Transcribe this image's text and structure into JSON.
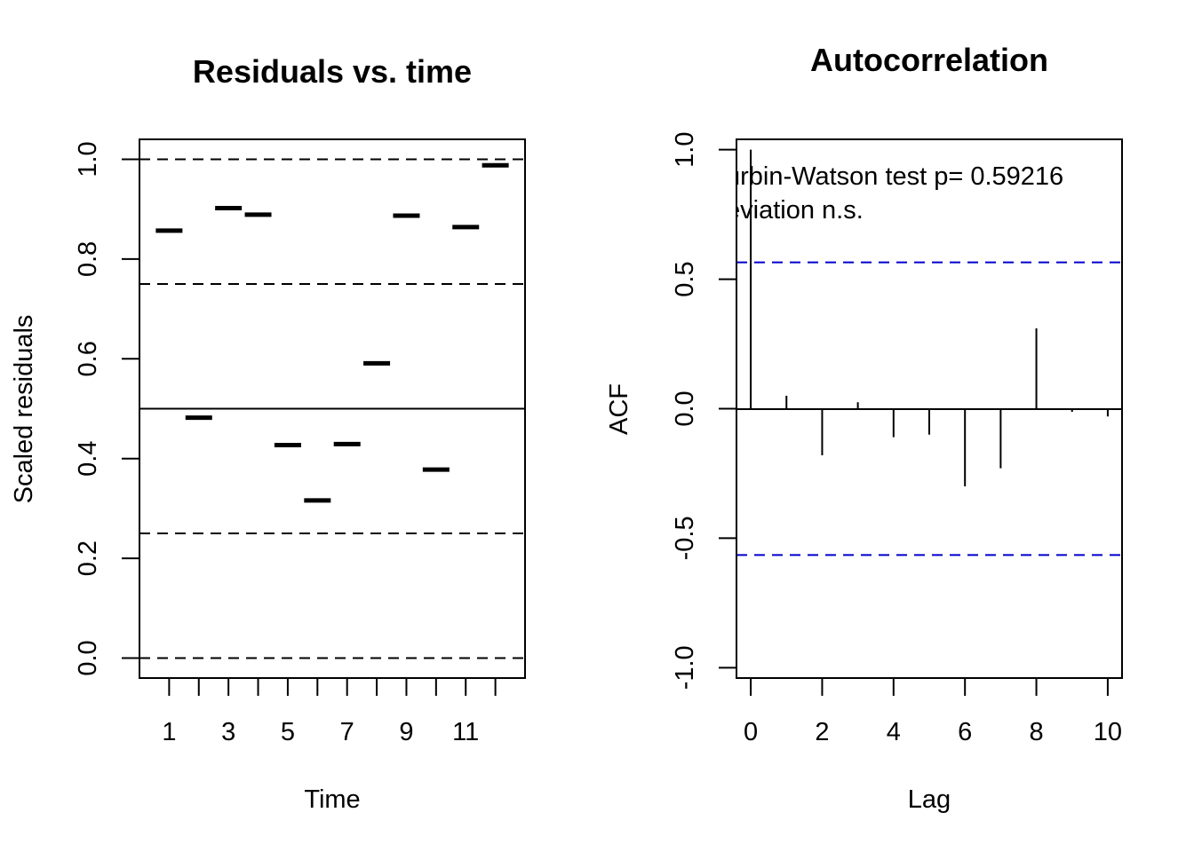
{
  "chart_data": [
    {
      "type": "scatter",
      "title": "Residuals vs. time",
      "xlabel": "Time",
      "ylabel": "Scaled residuals",
      "xlim": [
        0.0,
        13.0
      ],
      "ylim": [
        -0.04,
        1.04
      ],
      "x_ticks": [
        1,
        2,
        3,
        4,
        5,
        6,
        7,
        8,
        9,
        10,
        11,
        12
      ],
      "x_tick_labels": [
        "1",
        "3",
        "5",
        "7",
        "9",
        "11"
      ],
      "x_tick_label_values": [
        1,
        3,
        5,
        7,
        9,
        11
      ],
      "y_ticks": [
        0.0,
        0.2,
        0.4,
        0.6,
        0.8,
        1.0
      ],
      "y_tick_labels": [
        "0.0",
        "0.2",
        "0.4",
        "0.6",
        "0.8",
        "1.0"
      ],
      "reference_lines": [
        {
          "y": 0.0,
          "style": "dashed"
        },
        {
          "y": 0.25,
          "style": "dashed"
        },
        {
          "y": 0.5,
          "style": "solid"
        },
        {
          "y": 0.75,
          "style": "dashed"
        },
        {
          "y": 1.0,
          "style": "dashed"
        }
      ],
      "x": [
        1,
        2,
        3,
        4,
        5,
        6,
        7,
        8,
        9,
        10,
        11,
        12
      ],
      "y": [
        0.857,
        0.482,
        0.902,
        0.889,
        0.427,
        0.316,
        0.429,
        0.591,
        0.887,
        0.378,
        0.864,
        0.988
      ],
      "grid": false,
      "marker_color": "#000000"
    },
    {
      "type": "bar",
      "title": "Autocorrelation",
      "xlabel": "Lag",
      "ylabel": "ACF",
      "xlim": [
        -0.4,
        10.4
      ],
      "ylim": [
        -1.04,
        1.04
      ],
      "x_ticks": [
        0,
        2,
        4,
        6,
        8,
        10
      ],
      "x_tick_labels": [
        "0",
        "2",
        "4",
        "6",
        "8",
        "10"
      ],
      "y_ticks": [
        -1.0,
        -0.5,
        0.0,
        0.5,
        1.0
      ],
      "y_tick_labels": [
        "-1.0",
        "-0.5",
        "0.0",
        "0.5",
        "1.0"
      ],
      "lags": [
        0,
        1,
        2,
        3,
        4,
        5,
        6,
        7,
        8,
        9,
        10
      ],
      "acf": [
        1.0,
        0.05,
        -0.18,
        0.025,
        -0.11,
        -0.1,
        -0.3,
        -0.23,
        0.31,
        -0.012,
        -0.03
      ],
      "confidence_bounds": [
        0.565,
        -0.565
      ],
      "confidence_color": "#0000cc",
      "annotations": [
        "urbin-Watson test  p= 0.59216",
        "eviation  n.s."
      ],
      "grid": false
    }
  ]
}
